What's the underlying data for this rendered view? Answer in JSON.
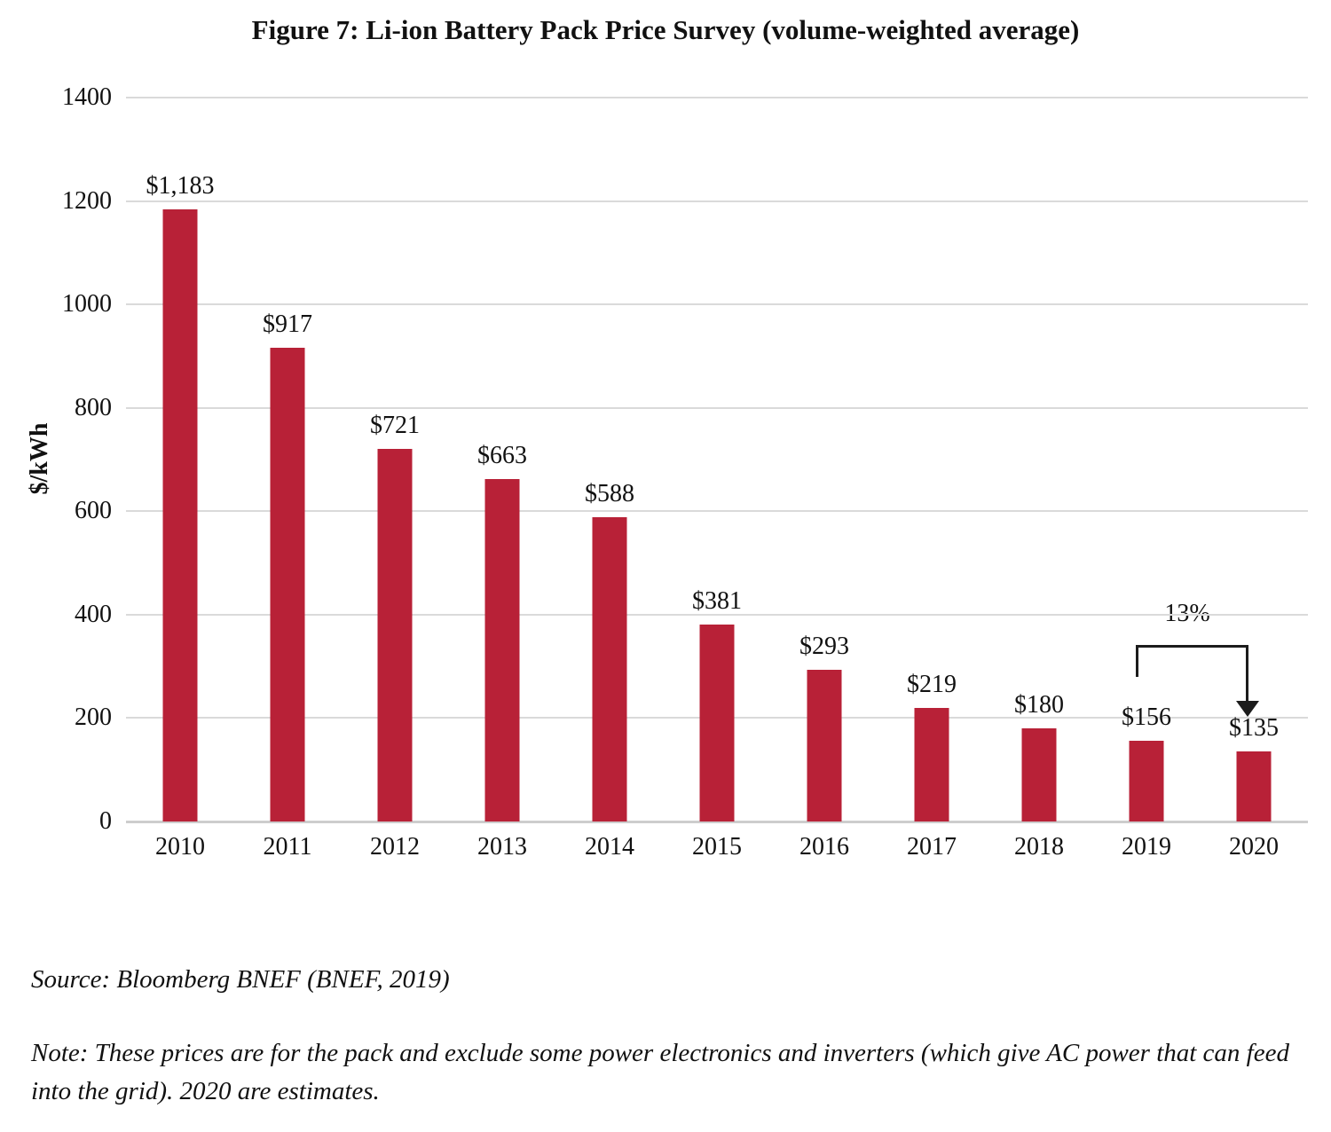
{
  "chart_data": {
    "type": "bar",
    "title": "Figure 7: Li-ion Battery Pack Price Survey (volume-weighted average)",
    "categories": [
      "2010",
      "2011",
      "2012",
      "2013",
      "2014",
      "2015",
      "2016",
      "2017",
      "2018",
      "2019",
      "2020"
    ],
    "values": [
      1183,
      917,
      721,
      663,
      588,
      381,
      293,
      219,
      180,
      156,
      135
    ],
    "value_labels": [
      "$1,183",
      "$917",
      "$721",
      "$663",
      "$588",
      "$381",
      "$293",
      "$219",
      "$180",
      "$156",
      "$135"
    ],
    "xlabel": "",
    "ylabel": "$/kWh",
    "ylim": [
      0,
      1400
    ],
    "yticks": [
      0,
      200,
      400,
      600,
      800,
      1000,
      1200,
      1400
    ],
    "grid": "horizontal",
    "legend": "none",
    "bar_color": "#b82137",
    "gridline_color": "#dadada",
    "annotation": {
      "label": "13%",
      "from_category": "2019",
      "to_category": "2020"
    }
  },
  "source": "Source: Bloomberg BNEF (BNEF, 2019)",
  "note": "Note: These prices are for the pack and exclude some power electronics and inverters (which give AC power that can feed into the grid). 2020 are estimates."
}
